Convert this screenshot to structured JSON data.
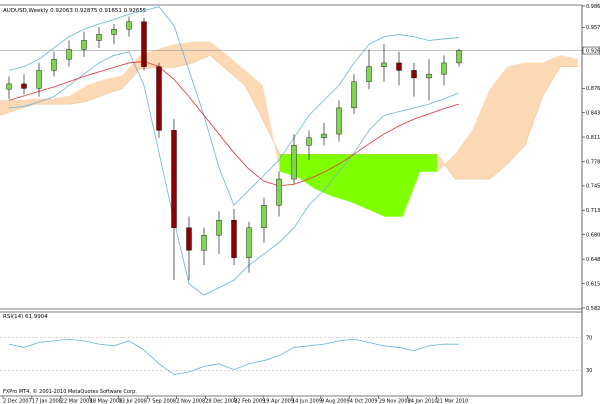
{
  "header": {
    "symbol_line": "AUDUSD,Weekly  0.92063 0.92875 0.91651 0.92655"
  },
  "footer": {
    "copyright": "FXPro MT4, © 2001-2010 MetaQuotes Software Corp."
  },
  "colors": {
    "ichimoku_bull_cloud": "#80ff00",
    "ichimoku_bear_cloud": "#fdd9b5",
    "cloud_bear_edge": "#d9a56a",
    "bollinger": "#66b3d9",
    "moving_average": "#e03030",
    "candle_up": "#7fd54f",
    "candle_down": "#8b0000",
    "rsi_line": "#66b3d9",
    "price_marker": "#ffffff"
  },
  "chart_data": [
    {
      "type": "candlestick",
      "title": "AUDUSD,Weekly",
      "ohlc_latest": {
        "open": 0.92063,
        "high": 0.92875,
        "low": 0.91651,
        "close": 0.92655
      },
      "x_tick_labels": [
        "2 Dec 2007",
        "17 Jan 2008",
        "22 Mar 2008",
        "18 May 2008",
        "13 Jul 2008",
        "7 Sep 2008",
        "2 Nov 2008",
        "28 Dec 2008",
        "22 Feb 2009",
        "19 Apr 2009",
        "14 Jun 2009",
        "9 Aug 2009",
        "4 Oct 2009",
        "29 Nov 2009",
        "24 Jan 2010",
        "21 Mar 2010"
      ],
      "y_tick_labels": [
        "0.98600",
        "0.95740",
        "0.92655",
        "0.87620",
        "0.84360",
        "0.81100",
        "0.77840",
        "0.74580",
        "0.71320",
        "0.68060",
        "0.64800",
        "0.61540",
        "0.58280"
      ],
      "ylim": [
        0.5828,
        0.986
      ],
      "current_price": 0.92655,
      "series": [
        {
          "name": "Price",
          "x": [
            "2007-12-02",
            "2007-12-30",
            "2008-01-27",
            "2008-02-24",
            "2008-03-23",
            "2008-04-20",
            "2008-05-18",
            "2008-06-15",
            "2008-07-13",
            "2008-08-10",
            "2008-09-07",
            "2008-10-05",
            "2008-11-02",
            "2008-11-30",
            "2008-12-28",
            "2009-01-25",
            "2009-02-22",
            "2009-03-22",
            "2009-04-19",
            "2009-05-17",
            "2009-06-14",
            "2009-07-12",
            "2009-08-09",
            "2009-09-06",
            "2009-10-04",
            "2009-11-01",
            "2009-11-29",
            "2009-12-27",
            "2010-01-24",
            "2010-02-21",
            "2010-03-21"
          ],
          "open": [
            0.875,
            0.882,
            0.876,
            0.9,
            0.915,
            0.928,
            0.94,
            0.948,
            0.955,
            0.965,
            0.905,
            0.82,
            0.69,
            0.66,
            0.68,
            0.7,
            0.65,
            0.69,
            0.72,
            0.755,
            0.8,
            0.81,
            0.815,
            0.85,
            0.885,
            0.905,
            0.91,
            0.9,
            0.89,
            0.895,
            0.91
          ],
          "high": [
            0.892,
            0.895,
            0.91,
            0.925,
            0.94,
            0.952,
            0.958,
            0.962,
            0.972,
            0.97,
            0.91,
            0.835,
            0.705,
            0.69,
            0.712,
            0.715,
            0.698,
            0.73,
            0.765,
            0.815,
            0.82,
            0.83,
            0.86,
            0.895,
            0.928,
            0.935,
            0.925,
            0.91,
            0.915,
            0.92,
            0.929
          ],
          "low": [
            0.862,
            0.868,
            0.865,
            0.892,
            0.905,
            0.918,
            0.93,
            0.935,
            0.945,
            0.9,
            0.81,
            0.62,
            0.62,
            0.64,
            0.655,
            0.64,
            0.63,
            0.67,
            0.705,
            0.748,
            0.78,
            0.8,
            0.805,
            0.842,
            0.875,
            0.885,
            0.88,
            0.865,
            0.86,
            0.88,
            0.905
          ],
          "close": [
            0.882,
            0.876,
            0.9,
            0.915,
            0.928,
            0.94,
            0.948,
            0.955,
            0.965,
            0.905,
            0.82,
            0.69,
            0.66,
            0.68,
            0.7,
            0.65,
            0.69,
            0.72,
            0.755,
            0.8,
            0.81,
            0.815,
            0.85,
            0.885,
            0.905,
            0.91,
            0.9,
            0.89,
            0.895,
            0.91,
            0.92655
          ]
        },
        {
          "name": "Moving Average",
          "values": [
            0.86,
            0.866,
            0.872,
            0.878,
            0.885,
            0.892,
            0.898,
            0.904,
            0.91,
            0.912,
            0.905,
            0.888,
            0.865,
            0.84,
            0.815,
            0.79,
            0.768,
            0.752,
            0.746,
            0.748,
            0.755,
            0.764,
            0.775,
            0.788,
            0.802,
            0.815,
            0.826,
            0.835,
            0.842,
            0.849,
            0.855
          ]
        },
        {
          "name": "Bollinger Upper",
          "values": [
            0.9,
            0.905,
            0.915,
            0.93,
            0.945,
            0.955,
            0.962,
            0.968,
            0.975,
            0.98,
            0.985,
            0.96,
            0.9,
            0.84,
            0.77,
            0.72,
            0.74,
            0.76,
            0.78,
            0.81,
            0.84,
            0.86,
            0.88,
            0.91,
            0.935,
            0.945,
            0.948,
            0.945,
            0.94,
            0.942,
            0.944
          ]
        },
        {
          "name": "Bollinger Lower",
          "values": [
            0.85,
            0.852,
            0.858,
            0.865,
            0.88,
            0.895,
            0.91,
            0.92,
            0.925,
            0.88,
            0.79,
            0.7,
            0.615,
            0.6,
            0.61,
            0.62,
            0.64,
            0.655,
            0.67,
            0.69,
            0.72,
            0.74,
            0.765,
            0.79,
            0.82,
            0.84,
            0.845,
            0.85,
            0.855,
            0.862,
            0.87
          ]
        },
        {
          "name": "Cloud Span A",
          "values": [
            0.84,
            0.848,
            0.855,
            0.855,
            0.855,
            0.859,
            0.868,
            0.876,
            0.902,
            0.904,
            0.904,
            0.91,
            0.92,
            0.9,
            0.88,
            0.835,
            0.788,
            0.788,
            0.788,
            0.788,
            0.788,
            0.788,
            0.788,
            0.788,
            0.788,
            0.788,
            0.755,
            0.755,
            0.755,
            0.775,
            0.8,
            0.865,
            0.905,
            0.905
          ]
        },
        {
          "name": "Cloud Span B",
          "values": [
            0.86,
            0.86,
            0.862,
            0.862,
            0.866,
            0.88,
            0.888,
            0.893,
            0.92,
            0.928,
            0.935,
            0.938,
            0.938,
            0.92,
            0.9,
            0.88,
            0.765,
            0.758,
            0.742,
            0.732,
            0.725,
            0.715,
            0.705,
            0.705,
            0.765,
            0.765,
            0.788,
            0.82,
            0.875,
            0.905,
            0.91,
            0.91,
            0.92,
            0.915
          ]
        }
      ]
    },
    {
      "type": "line",
      "title": "RSI(14) 61.9904",
      "y_tick_labels": [
        "70",
        "30"
      ],
      "ylim": [
        0,
        100
      ],
      "levels": [
        70,
        30
      ],
      "series": [
        {
          "name": "RSI",
          "values": [
            62,
            58,
            64,
            66,
            68,
            66,
            62,
            60,
            66,
            55,
            38,
            25,
            28,
            35,
            38,
            31,
            38,
            42,
            48,
            58,
            60,
            62,
            66,
            68,
            64,
            60,
            58,
            54,
            60,
            62,
            61.99
          ]
        }
      ]
    }
  ]
}
